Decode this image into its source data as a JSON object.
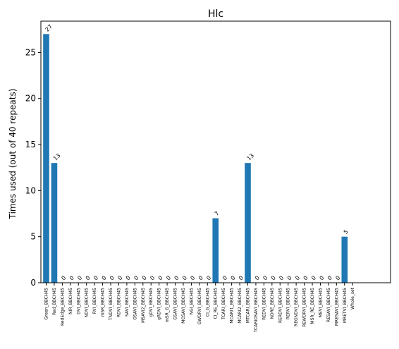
{
  "chart_data": {
    "type": "bar",
    "title": "Hlc",
    "xlabel": "",
    "ylabel": "Times used (out of 40 repeats)",
    "ylim": [
      0,
      28.4
    ],
    "yticks": [
      0,
      5,
      10,
      15,
      20,
      25
    ],
    "grid": false,
    "bar_color": "#1f77b4",
    "categories": [
      "Green_BBCH45",
      "Red_BBCH45",
      "RedEdge_BBCH45",
      "NIR_BBCH45",
      "DVI_BBCH45",
      "NDVI_BBCH45",
      "RVI_BBCH45",
      "mSR_BBCH45",
      "TNDVI_BBCH45",
      "RDVI_BBCH45",
      "SAVI_BBCH45",
      "OSAVI_BBCH45",
      "MSAVI2_BBCH45",
      "gDVI_BBCH45",
      "gRDVI_BBCH45",
      "mSR_G_BBCH45",
      "GSAVI_BBCH45",
      "MGSAVI_BBCH45",
      "NGI_BBCH45",
      "GWDRVI_BBCH45",
      "CI_G_BBCH45",
      "CI_RE_BBCH45",
      "TCARI_BBCH45",
      "MCARI1_BBCH45",
      "MCARI2_BBCH45",
      "MTCARI_BBCH45",
      "TCARIOSAVI_BBCH45",
      "REDVI_BBCH45",
      "NDRE_BBCH45",
      "RERDVI_BBCH45",
      "RERVI_BBCH45",
      "REGNDVI_BBCH45",
      "REWDRVI_BBCH45",
      "MSR_RE_BBCH45",
      "MEVI_BBCH45",
      "RESAVI_BBCH45",
      "MRESAVI_BBCH45",
      "MRETVI_BBCH45",
      "Whole_set"
    ],
    "values": [
      27,
      13,
      0,
      0,
      0,
      0,
      0,
      0,
      0,
      0,
      0,
      0,
      0,
      0,
      0,
      0,
      0,
      0,
      0,
      0,
      0,
      7,
      0,
      0,
      0,
      13,
      0,
      0,
      0,
      0,
      0,
      0,
      0,
      0,
      0,
      0,
      0,
      5,
      0
    ],
    "data_labels": [
      "27",
      "13",
      "0",
      "0",
      "0",
      "0",
      "0",
      "0",
      "0",
      "0",
      "0",
      "0",
      "0",
      "0",
      "0",
      "0",
      "0",
      "0",
      "0",
      "0",
      "0",
      "7",
      "0",
      "0",
      "0",
      "13",
      "0",
      "0",
      "0",
      "0",
      "0",
      "0",
      "0",
      "0",
      "0",
      "0",
      "0",
      "5",
      ""
    ]
  }
}
